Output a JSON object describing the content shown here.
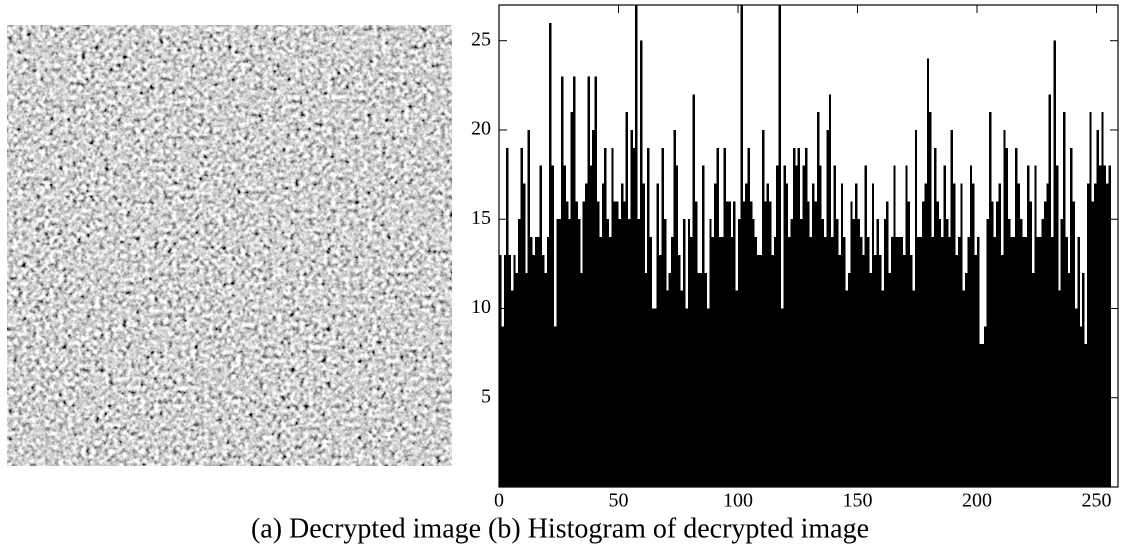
{
  "chart_data": {
    "type": "histogram",
    "caption": "(a) Decrypted image (b) Histogram of decrypted image",
    "color": "#000000",
    "xlim": [
      0,
      259
    ],
    "ylim": [
      0,
      27
    ],
    "xticks": [
      0,
      50,
      100,
      150,
      200,
      250
    ],
    "yticks": [
      5,
      10,
      15,
      20,
      25
    ],
    "bins": [
      0,
      1,
      2,
      3,
      4,
      5,
      6,
      7,
      8,
      9,
      10,
      11,
      12,
      13,
      14,
      15,
      16,
      17,
      18,
      19,
      20,
      21,
      22,
      23,
      24,
      25,
      26,
      27,
      28,
      29,
      30,
      31,
      32,
      33,
      34,
      35,
      36,
      37,
      38,
      39,
      40,
      41,
      42,
      43,
      44,
      45,
      46,
      47,
      48,
      49,
      50,
      51,
      52,
      53,
      54,
      55,
      56,
      57,
      58,
      59,
      60,
      61,
      62,
      63,
      64,
      65,
      66,
      67,
      68,
      69,
      70,
      71,
      72,
      73,
      74,
      75,
      76,
      77,
      78,
      79,
      80,
      81,
      82,
      83,
      84,
      85,
      86,
      87,
      88,
      89,
      90,
      91,
      92,
      93,
      94,
      95,
      96,
      97,
      98,
      99,
      100,
      101,
      102,
      103,
      104,
      105,
      106,
      107,
      108,
      109,
      110,
      111,
      112,
      113,
      114,
      115,
      116,
      117,
      118,
      119,
      120,
      121,
      122,
      123,
      124,
      125,
      126,
      127,
      128,
      129,
      130,
      131,
      132,
      133,
      134,
      135,
      136,
      137,
      138,
      139,
      140,
      141,
      142,
      143,
      144,
      145,
      146,
      147,
      148,
      149,
      150,
      151,
      152,
      153,
      154,
      155,
      156,
      157,
      158,
      159,
      160,
      161,
      162,
      163,
      164,
      165,
      166,
      167,
      168,
      169,
      170,
      171,
      172,
      173,
      174,
      175,
      176,
      177,
      178,
      179,
      180,
      181,
      182,
      183,
      184,
      185,
      186,
      187,
      188,
      189,
      190,
      191,
      192,
      193,
      194,
      195,
      196,
      197,
      198,
      199,
      200,
      201,
      202,
      203,
      204,
      205,
      206,
      207,
      208,
      209,
      210,
      211,
      212,
      213,
      214,
      215,
      216,
      217,
      218,
      219,
      220,
      221,
      222,
      223,
      224,
      225,
      226,
      227,
      228,
      229,
      230,
      231,
      232,
      233,
      234,
      235,
      236,
      237,
      238,
      239,
      240,
      241,
      242,
      243,
      244,
      245,
      246,
      247,
      248,
      249,
      250,
      251,
      252,
      253,
      254,
      255,
      256
    ],
    "values": [
      13,
      9,
      13,
      19,
      13,
      11,
      13,
      12,
      15,
      19,
      17,
      12,
      20,
      14,
      13,
      14,
      14,
      18,
      13,
      12,
      14,
      26,
      18,
      9,
      15,
      15,
      23,
      18,
      16,
      15,
      21,
      23,
      16,
      15,
      12,
      16,
      17,
      23,
      18,
      20,
      23,
      16,
      14,
      17,
      19,
      15,
      14,
      19,
      16,
      16,
      15,
      17,
      16,
      21,
      15,
      20,
      19,
      27,
      15,
      25,
      17,
      12,
      19,
      14,
      10,
      10,
      17,
      13,
      19,
      15,
      11,
      12,
      14,
      20,
      18,
      13,
      11,
      15,
      10,
      15,
      14,
      22,
      16,
      12,
      12,
      18,
      12,
      10,
      15,
      14,
      17,
      19,
      14,
      14,
      19,
      16,
      16,
      14,
      16,
      11,
      15,
      27,
      16,
      17,
      19,
      16,
      15,
      14,
      13,
      13,
      20,
      16,
      17,
      16,
      13,
      14,
      18,
      27,
      10,
      18,
      17,
      14,
      15,
      19,
      18,
      19,
      15,
      18,
      19,
      16,
      14,
      17,
      16,
      21,
      18,
      15,
      14,
      20,
      22,
      14,
      18,
      15,
      13,
      17,
      14,
      11,
      12,
      16,
      15,
      17,
      15,
      14,
      13,
      18,
      14,
      12,
      17,
      13,
      15,
      13,
      11,
      15,
      16,
      12,
      14,
      18,
      14,
      14,
      14,
      13,
      18,
      16,
      13,
      11,
      20,
      14,
      14,
      16,
      17,
      24,
      21,
      14,
      19,
      16,
      15,
      14,
      18,
      15,
      14,
      20,
      17,
      13,
      14,
      17,
      11,
      12,
      14,
      18,
      17,
      13,
      14,
      8,
      8,
      9,
      15,
      21,
      16,
      14,
      16,
      17,
      13,
      20,
      19,
      15,
      14,
      14,
      19,
      17,
      15,
      14,
      14,
      18,
      16,
      12,
      18,
      14,
      14,
      15,
      16,
      17,
      22,
      14,
      25,
      18,
      11,
      15,
      21,
      14,
      12,
      19,
      16,
      10,
      14,
      9,
      12,
      8,
      17,
      21,
      16,
      17,
      20,
      18,
      21,
      18,
      17,
      18
    ]
  }
}
